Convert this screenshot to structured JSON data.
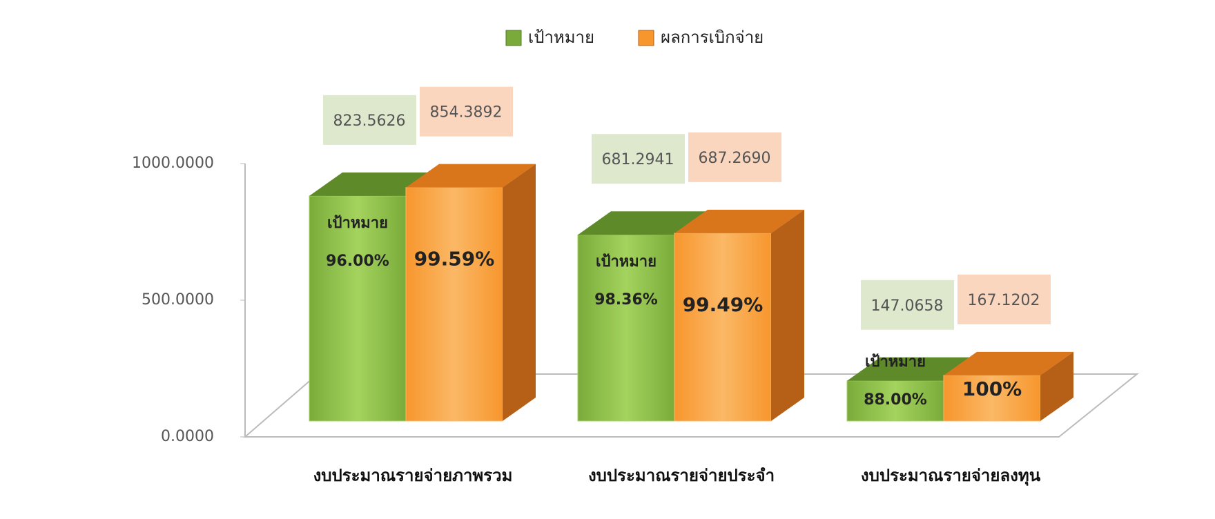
{
  "chart_data": {
    "type": "bar3d",
    "categories": [
      "งบประมาณรายจ่ายภาพรวม",
      "งบประมาณรายจ่ายประจำ",
      "งบประมาณรายจ่ายลงทุน"
    ],
    "series": [
      {
        "name": "เป้าหมาย",
        "color": "#7aab3a",
        "values": [
          823.5626,
          681.2941,
          147.0658
        ],
        "value_labels": [
          "823.5626",
          "681.2941",
          "147.0658"
        ],
        "percent_labels": [
          "96.00%",
          "98.36%",
          "88.00%"
        ]
      },
      {
        "name": "ผลการเบิกจ่าย",
        "color": "#f7962d",
        "values": [
          854.3892,
          687.269,
          167.1202
        ],
        "value_labels": [
          "854.3892",
          "687.2690",
          "167.1202"
        ],
        "percent_labels": [
          "99.59%",
          "99.49%",
          "100%"
        ]
      }
    ],
    "ylim": [
      0,
      1000
    ],
    "yticks": [
      {
        "value": 0,
        "label": "0.0000"
      },
      {
        "value": 500,
        "label": "500.0000"
      },
      {
        "value": 1000,
        "label": "1000.0000"
      }
    ],
    "legend": "top"
  }
}
